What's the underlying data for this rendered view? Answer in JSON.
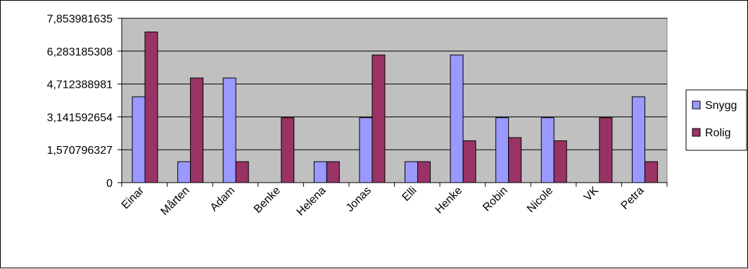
{
  "chart_data": {
    "type": "bar",
    "title": "",
    "xlabel": "",
    "ylabel": "",
    "categories": [
      "Einar",
      "Mårten",
      "Adam",
      "Benke",
      "Helena",
      "Jonas",
      "Elli",
      "Henke",
      "Robin",
      "Nicole",
      "VK",
      "Petra"
    ],
    "series": [
      {
        "name": "Snygg",
        "color": "#9999ff",
        "values": [
          4.1,
          1.0,
          5.0,
          0,
          1.0,
          3.1,
          1.0,
          6.1,
          3.1,
          3.1,
          0,
          4.1
        ]
      },
      {
        "name": "Rolig",
        "color": "#993366",
        "values": [
          7.2,
          5.0,
          1.0,
          3.1,
          1.0,
          6.1,
          1.0,
          2.0,
          2.15,
          2.0,
          3.1,
          1.0
        ]
      }
    ],
    "ylim": [
      0,
      7.853981635
    ],
    "yticks": [
      0,
      1.570796327,
      3.141592654,
      4.712388981,
      6.283185308,
      7.853981635
    ],
    "ytick_labels": [
      "0",
      "1,570796327",
      "3,141592654",
      "4,712388981",
      "6,283185308",
      "7,853981635"
    ],
    "plot_background": "#c0c0c0",
    "grid": true,
    "legend": {
      "position": "right",
      "entries": [
        "Snygg",
        "Rolig"
      ]
    }
  }
}
